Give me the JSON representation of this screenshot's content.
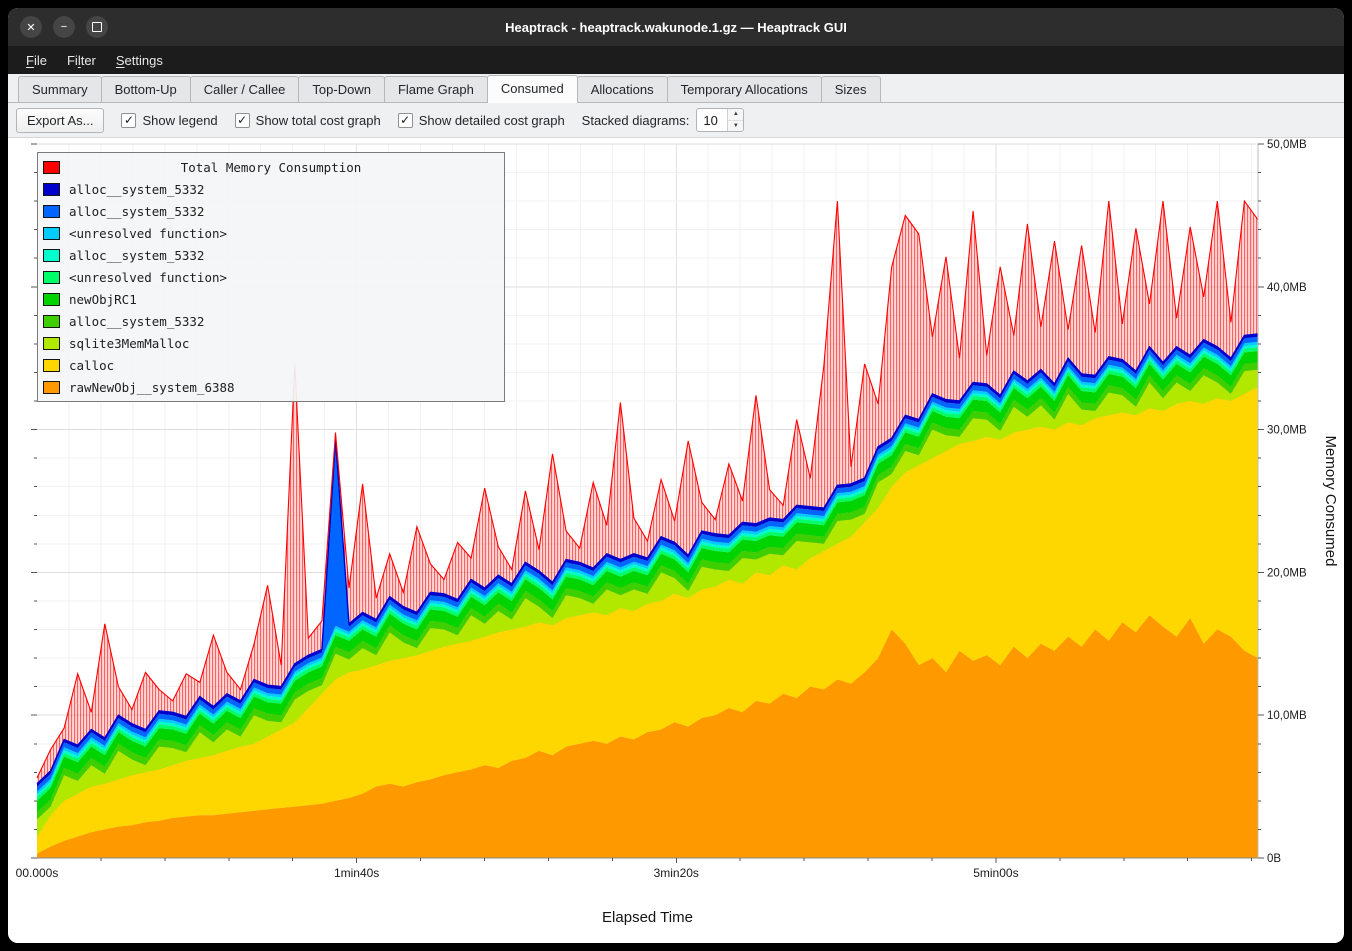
{
  "window": {
    "title": "Heaptrack - heaptrack.wakunode.1.gz — Heaptrack GUI"
  },
  "icons": {
    "close": "✕",
    "minimize": "−",
    "check": "✓",
    "spin_up": "▲",
    "spin_down": "▼"
  },
  "menu": {
    "items": [
      {
        "label": "File"
      },
      {
        "label": "Filter"
      },
      {
        "label": "Settings"
      }
    ]
  },
  "tabs": {
    "items": [
      "Summary",
      "Bottom-Up",
      "Caller / Callee",
      "Top-Down",
      "Flame Graph",
      "Consumed",
      "Allocations",
      "Temporary Allocations",
      "Sizes"
    ],
    "active": "Consumed"
  },
  "toolbar": {
    "export_label": "Export As...",
    "checkboxes": [
      {
        "label": "Show legend",
        "checked": true
      },
      {
        "label": "Show total cost graph",
        "checked": true
      },
      {
        "label": "Show detailed cost graph",
        "checked": true
      }
    ],
    "stacked_label": "Stacked diagrams:",
    "stacked_value": "10"
  },
  "legend": {
    "title": "Total Memory Consumption",
    "title_color": "#ff0000",
    "entries": [
      {
        "label": "alloc__system_5332",
        "color": "#0000cd"
      },
      {
        "label": "alloc__system_5332",
        "color": "#0066ff"
      },
      {
        "label": "<unresolved function>",
        "color": "#00ccff"
      },
      {
        "label": "alloc__system_5332",
        "color": "#00ffcc"
      },
      {
        "label": "<unresolved function>",
        "color": "#00ff66"
      },
      {
        "label": "newObjRC1",
        "color": "#00d400"
      },
      {
        "label": "alloc__system_5332",
        "color": "#3ecf00"
      },
      {
        "label": "sqlite3MemMalloc",
        "color": "#b2e800"
      },
      {
        "label": "calloc",
        "color": "#ffd700"
      },
      {
        "label": "rawNewObj__system_6388",
        "color": "#ff9900"
      }
    ]
  },
  "chart_data": {
    "type": "area",
    "title": "Total Memory Consumption",
    "xlabel": "Elapsed Time",
    "ylabel": "Memory Consumed",
    "x_ticks": [
      {
        "label": "00.000s",
        "seconds": 0
      },
      {
        "label": "1min40s",
        "seconds": 100
      },
      {
        "label": "3min20s",
        "seconds": 200
      },
      {
        "label": "5min00s",
        "seconds": 300
      }
    ],
    "y_ticks": [
      {
        "label": "0B",
        "mb": 0
      },
      {
        "label": "10,0MB",
        "mb": 10
      },
      {
        "label": "20,0MB",
        "mb": 20
      },
      {
        "label": "30,0MB",
        "mb": 30
      },
      {
        "label": "40,0MB",
        "mb": 40
      },
      {
        "label": "50,0MB",
        "mb": 50
      }
    ],
    "ylim": [
      0,
      50
    ],
    "xlim_seconds": [
      0,
      382
    ],
    "grid": true,
    "legend_position": "top-left",
    "layers_bottom_to_top": [
      "rawNewObj__system_6388",
      "calloc",
      "sqlite3MemMalloc",
      "alloc__system_5332",
      "newObjRC1",
      "<unresolved function>",
      "alloc__system_5332",
      "<unresolved function>",
      "alloc__system_5332",
      "alloc__system_5332"
    ],
    "colors": {
      "total": "#ff0000",
      "rawNewObj": "#ff9900",
      "calloc": "#ffd700",
      "sqlite3MemMalloc": "#b2e800",
      "alloc_green": "#3ecf00",
      "newObjRC1": "#00d400",
      "unresolved_springgreen": "#00ff66",
      "alloc_turquoise": "#00ffcc",
      "unresolved_lightblue": "#00ccff",
      "alloc_blue": "#0066ff",
      "alloc_darkblue": "#0000cd"
    },
    "series": {
      "rawNewObj_top_mb": [
        0.3,
        0.8,
        1.2,
        1.5,
        1.8,
        2.0,
        2.2,
        2.3,
        2.5,
        2.6,
        2.8,
        2.9,
        3.0,
        3.0,
        3.1,
        3.2,
        3.3,
        3.4,
        3.5,
        3.6,
        3.7,
        3.8,
        4.0,
        4.2,
        4.5,
        5.0,
        5.2,
        5.0,
        5.3,
        5.5,
        5.8,
        6.0,
        6.2,
        6.5,
        6.3,
        6.8,
        7.0,
        7.5,
        7.2,
        7.8,
        8.0,
        8.2,
        8.0,
        8.5,
        8.3,
        8.8,
        9.0,
        9.5,
        9.2,
        9.8,
        10.0,
        10.5,
        10.2,
        11.0,
        10.8,
        11.5,
        11.2,
        12.0,
        11.8,
        12.5,
        12.2,
        13.0,
        14.0,
        16.0,
        15.0,
        13.5,
        14.0,
        13.0,
        14.5,
        13.8,
        14.2,
        13.5,
        14.8,
        14.0,
        15.0,
        14.5,
        15.5,
        14.8,
        16.0,
        15.2,
        16.5,
        15.8,
        17.0,
        16.2,
        15.5,
        16.8,
        15.0,
        16.0,
        15.5,
        14.5,
        14.0
      ],
      "calloc_top_mb": [
        1.5,
        3.0,
        4.0,
        4.5,
        5.0,
        5.2,
        5.5,
        5.8,
        6.0,
        6.2,
        6.5,
        6.8,
        7.0,
        7.2,
        7.5,
        7.8,
        8.0,
        8.5,
        9.0,
        9.5,
        10.5,
        11.5,
        12.5,
        13.0,
        13.2,
        13.5,
        13.8,
        14.0,
        14.2,
        14.5,
        14.8,
        15.0,
        15.2,
        15.5,
        15.8,
        16.0,
        16.2,
        16.5,
        16.3,
        16.8,
        17.0,
        17.2,
        17.0,
        17.5,
        17.3,
        17.8,
        18.0,
        18.5,
        18.2,
        18.8,
        19.0,
        19.5,
        19.2,
        20.0,
        19.8,
        20.5,
        20.2,
        21.0,
        21.5,
        22.0,
        22.5,
        23.5,
        24.5,
        26.0,
        27.0,
        27.5,
        28.0,
        28.5,
        29.0,
        29.2,
        29.5,
        29.3,
        29.8,
        30.0,
        30.2,
        30.0,
        30.5,
        30.3,
        30.8,
        31.0,
        31.2,
        31.0,
        31.5,
        31.3,
        31.8,
        32.0,
        31.8,
        32.2,
        32.0,
        32.5,
        33.0
      ],
      "sqlite3MemMalloc_thickness_mb": [
        1.2,
        0.6,
        1.8,
        0.9,
        1.5,
        0.7,
        2.0,
        1.1,
        0.5,
        1.6,
        1.2,
        0.6,
        1.8,
        0.9,
        1.5,
        0.7,
        2.0,
        1.1,
        0.5,
        1.6,
        1.2,
        0.6,
        1.8,
        0.9,
        1.5,
        0.7,
        2.0,
        1.1,
        0.5,
        1.6,
        1.2,
        0.6,
        1.8,
        0.9,
        1.5,
        0.7,
        2.0,
        1.1,
        0.5,
        1.6,
        1.2,
        0.6,
        1.8,
        0.9,
        1.5,
        0.7,
        2.0,
        1.1,
        0.5,
        1.6,
        1.2,
        0.6,
        1.8,
        0.9,
        1.5,
        0.7,
        2.0,
        1.1,
        0.5,
        1.6,
        1.2,
        0.6,
        1.8,
        0.9,
        1.5,
        0.7,
        2.0,
        1.1,
        0.5,
        1.6,
        1.2,
        0.6,
        1.8,
        0.9,
        1.5,
        0.7,
        2.0,
        1.1,
        0.5,
        1.6,
        1.2,
        0.6,
        1.8,
        0.9,
        1.5,
        0.7,
        2.0,
        1.1,
        0.5,
        1.6,
        1.2
      ],
      "thin_layer_thickness_mb": {
        "alloc_green": 0.5,
        "newObjRC1": 0.8,
        "unresolved_springgreen": 0.25,
        "alloc_turquoise": 0.2,
        "unresolved_lightblue": 0.2,
        "alloc_blue": 0.35,
        "alloc_darkblue": 0.2
      },
      "alloc_blue_spikes_mb": {
        "22": 12.5
      },
      "total_top_mb": [
        5.6,
        7.6,
        9.1,
        12.9,
        10.2,
        16.4,
        12.0,
        10.4,
        13.0,
        11.8,
        11.0,
        12.9,
        12.3,
        15.6,
        13.0,
        11.8,
        15.0,
        19.1,
        13.5,
        34.6,
        15.4,
        16.6,
        29.8,
        18.9,
        26.2,
        18.2,
        21.3,
        18.6,
        23.2,
        20.6,
        19.5,
        22.1,
        21.0,
        25.9,
        21.8,
        20.2,
        25.7,
        21.6,
        28.3,
        22.9,
        21.7,
        26.3,
        23.3,
        31.9,
        23.8,
        22.2,
        26.5,
        23.6,
        29.2,
        24.9,
        23.7,
        27.6,
        25.0,
        32.4,
        25.8,
        24.7,
        30.7,
        26.6,
        34.5,
        46.0,
        27.4,
        34.6,
        31.8,
        41.4,
        45.0,
        43.7,
        36.5,
        42.1,
        35.0,
        45.3,
        35.2,
        41.4,
        36.6,
        44.4,
        37.2,
        43.2,
        37.0,
        42.9,
        36.8,
        46.0,
        37.4,
        44.1,
        38.8,
        46.0,
        37.8,
        44.2,
        39.3,
        46.0,
        37.5,
        46.0,
        44.7
      ]
    }
  }
}
